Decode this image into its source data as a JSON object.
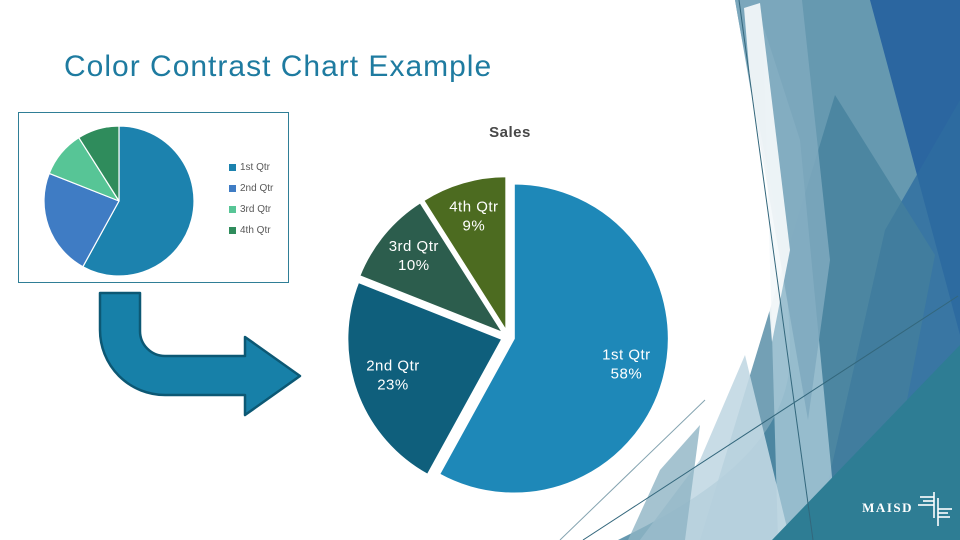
{
  "slide": {
    "title": "Color Contrast Chart Example",
    "title_color": "#1E7BA0",
    "background": "#FFFFFF"
  },
  "chart_data": [
    {
      "id": "thumbnail-pie",
      "type": "pie",
      "title": "",
      "categories": [
        "1st Qtr",
        "2nd Qtr",
        "3rd Qtr",
        "4th Qtr"
      ],
      "values": [
        58,
        23,
        10,
        9
      ],
      "unit": "%",
      "colors": [
        "#1C82AE",
        "#3F7CC4",
        "#57C596",
        "#2F8C5C"
      ],
      "legend_position": "right",
      "legend_text_color": "#595959",
      "data_labels_shown": false,
      "start_angle_deg": 0,
      "clockwise": true
    },
    {
      "id": "sales-pie",
      "type": "pie",
      "title": "Sales",
      "title_color": "#474747",
      "categories": [
        "1st Qtr",
        "2nd Qtr",
        "3rd Qtr",
        "4th Qtr"
      ],
      "values": [
        58,
        23,
        10,
        9
      ],
      "unit": "%",
      "colors": [
        "#1E88B8",
        "#0F5F7C",
        "#2C5D4D",
        "#4C6B20"
      ],
      "label_color": "#FFFFFF",
      "legend_position": "none",
      "exploded": true,
      "data_labels_shown": true,
      "start_angle_deg": 0,
      "clockwise": true
    }
  ],
  "arrow": {
    "fill": "#1780A8",
    "stroke": "#0C5874"
  },
  "logo": {
    "text": "MAISD",
    "color": "#FFFFFF"
  },
  "decoration": {
    "palette": [
      "#6699B0",
      "#2B66A0",
      "#2E6DA0",
      "#2E7D94",
      "#A9C9D8",
      "#C2D8E3",
      "#7FA9BE",
      "#44809C",
      "#FFFFFF",
      "#8FB4C4"
    ],
    "line_color": "#33677C"
  }
}
